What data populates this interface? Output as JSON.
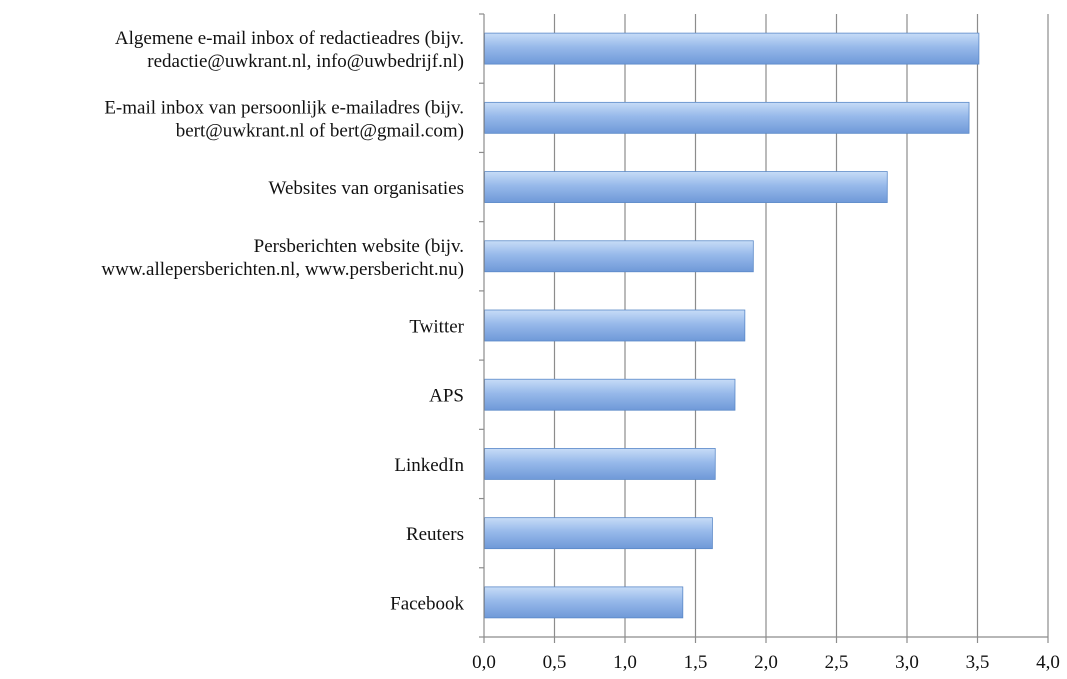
{
  "chart_data": {
    "type": "bar",
    "orientation": "horizontal",
    "categories": [
      [
        "Algemene e-mail inbox of redactieadres (bijv.",
        "redactie@uwkrant.nl, info@uwbedrijf.nl)"
      ],
      [
        "E-mail inbox van persoonlijk e-mailadres (bijv.",
        "bert@uwkrant.nl of bert@gmail.com)"
      ],
      [
        "Websites van organisaties"
      ],
      [
        "Persberichten website (bijv.",
        "www.allepersberichten.nl, www.persbericht.nu)"
      ],
      [
        "Twitter"
      ],
      [
        "APS"
      ],
      [
        "LinkedIn"
      ],
      [
        "Reuters"
      ],
      [
        "Facebook"
      ]
    ],
    "values": [
      3.51,
      3.44,
      2.86,
      1.91,
      1.85,
      1.78,
      1.64,
      1.62,
      1.41
    ],
    "xlim": [
      0,
      4
    ],
    "xticks": [
      0,
      0.5,
      1,
      1.5,
      2,
      2.5,
      3,
      3.5,
      4
    ],
    "xtick_labels": [
      "0,0",
      "0,5",
      "1,0",
      "1,5",
      "2,0",
      "2,5",
      "3,0",
      "3,5",
      "4,0"
    ],
    "title": "",
    "xlabel": "",
    "ylabel": "",
    "grid": "vertical",
    "legend": "none",
    "colors": {
      "bar_light": "#b9d3f5",
      "bar_mid": "#8fb3e8",
      "bar_dark": "#6f99d8",
      "grid": "#8c8c8c",
      "text": "#111111"
    }
  }
}
